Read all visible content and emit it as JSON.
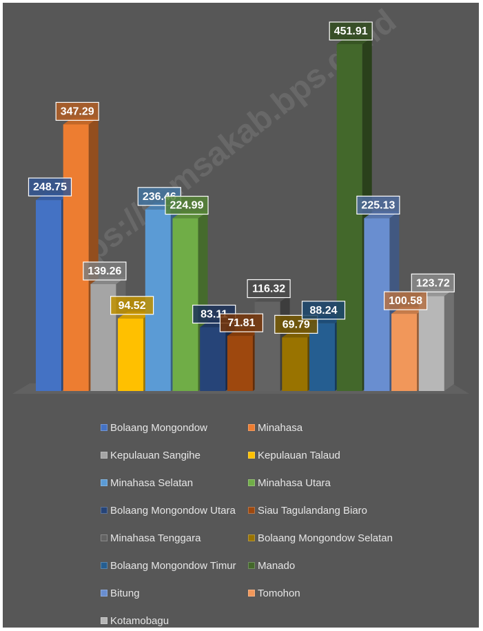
{
  "watermark": "https://samsakab.bps.go.id",
  "chart_data": {
    "type": "bar",
    "three_d": true,
    "grid": false,
    "legend_position": "bottom",
    "title": "",
    "xlabel": "",
    "ylabel": "",
    "ylim": [
      0,
      500
    ],
    "series": [
      {
        "name": "Bolaang Mongondow",
        "value": 248.75,
        "label": "248.75",
        "color": "#4472c4"
      },
      {
        "name": "Minahasa",
        "value": 347.29,
        "label": "347.29",
        "color": "#ed7d31"
      },
      {
        "name": "Kepulauan Sangihe",
        "value": 139.26,
        "label": "139.26",
        "color": "#a5a5a5"
      },
      {
        "name": "Kepulauan Talaud",
        "value": 94.52,
        "label": "94.52",
        "color": "#ffc000"
      },
      {
        "name": "Minahasa Selatan",
        "value": 236.46,
        "label": "236.46",
        "color": "#5b9bd5"
      },
      {
        "name": "Minahasa Utara",
        "value": 224.99,
        "label": "224.99",
        "color": "#70ad47"
      },
      {
        "name": "Bolaang Mongondow Utara",
        "value": 83.11,
        "label": "83.11",
        "color": "#264478"
      },
      {
        "name": "Siau Tagulandang Biaro",
        "value": 71.81,
        "label": "71.81",
        "color": "#9e480e"
      },
      {
        "name": "Minahasa Tenggara",
        "value": 116.32,
        "label": "116.32",
        "color": "#636363"
      },
      {
        "name": "Bolaang Mongondow Selatan",
        "value": 69.79,
        "label": "69.79",
        "color": "#997300"
      },
      {
        "name": "Bolaang Mongondow Timur",
        "value": 88.24,
        "label": "88.24",
        "color": "#255e91"
      },
      {
        "name": "Manado",
        "value": 451.91,
        "label": "451.91",
        "color": "#43682b"
      },
      {
        "name": "Bitung",
        "value": 225.13,
        "label": "225.13",
        "color": "#698ed0"
      },
      {
        "name": "Tomohon",
        "value": 100.58,
        "label": "100.58",
        "color": "#f1975a"
      },
      {
        "name": "Kotamobagu",
        "value": 123.72,
        "label": "123.72",
        "color": "#b7b7b7"
      }
    ]
  }
}
